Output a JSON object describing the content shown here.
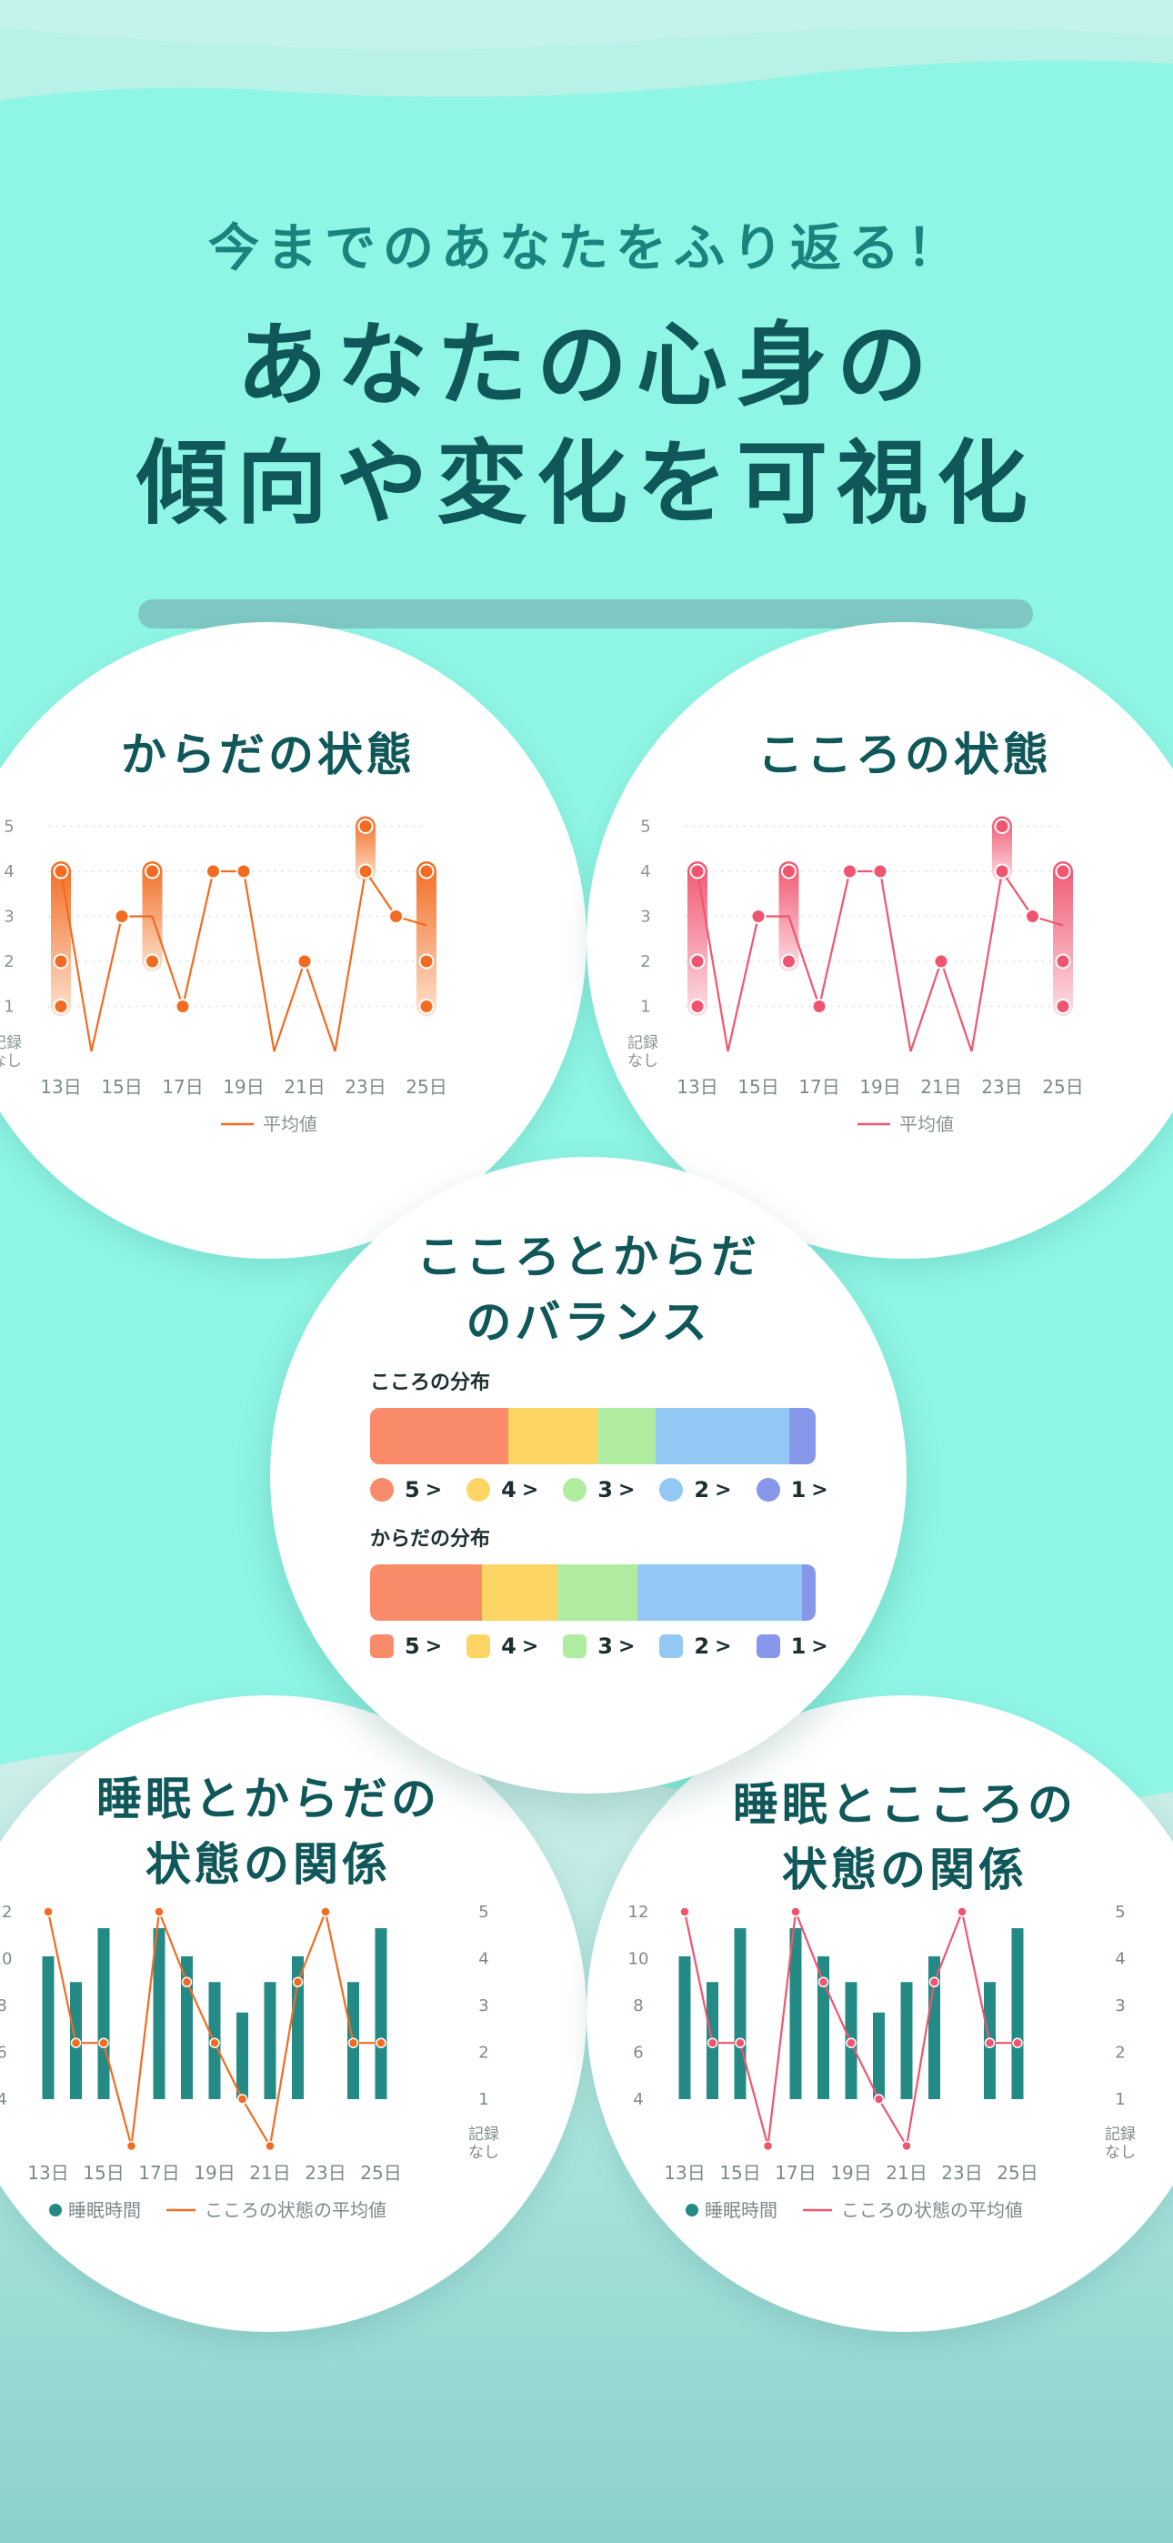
{
  "hero": {
    "subtitle": "今までのあなたをふり返る！",
    "title_line1": "あなたの心身の",
    "title_line2": "傾向や変化を可視化"
  },
  "colors": {
    "background": "#8ff5e4",
    "heading": "#0f5759",
    "body_orange": "#f26b21",
    "mind_red": "#f0556f",
    "teal_bar": "#248a85"
  },
  "axis": {
    "x_labels": [
      "13日",
      "15日",
      "17日",
      "19日",
      "21日",
      "23日",
      "25日"
    ],
    "y_levels": [
      "5",
      "4",
      "3",
      "2",
      "1"
    ],
    "no_record_line1": "記録",
    "no_record_line2": "なし",
    "sleep_left_ticks": [
      "12",
      "10",
      "8",
      "6",
      "4"
    ]
  },
  "body_card": {
    "title": "からだの状態",
    "legend": "平均値"
  },
  "mind_card": {
    "title": "こころの状態",
    "legend": "平均値"
  },
  "balance_card": {
    "title_line1": "こころとからだ",
    "title_line2": "のバランス",
    "mind_label": "こころの分布",
    "body_label": "からだの分布",
    "chevron": ">",
    "legend_labels": [
      "5",
      "4",
      "3",
      "2",
      "1"
    ],
    "legend_colors": [
      "#f98a6a",
      "#fdd564",
      "#b0ec9f",
      "#93c8f5",
      "#8797ea"
    ]
  },
  "sleep_body_card": {
    "title_line1": "睡眠とからだの",
    "title_line2": "状態の関係",
    "legend_bar": "睡眠時間",
    "legend_line": "こころの状態の平均値"
  },
  "sleep_mind_card": {
    "title_line1": "睡眠とこころの",
    "title_line2": "状態の関係",
    "legend_bar": "睡眠時間",
    "legend_line": "こころの状態の平均値"
  },
  "chart_data": [
    {
      "type": "line",
      "title": "からだの状態",
      "x": [
        13,
        14,
        15,
        16,
        17,
        18,
        19,
        20,
        21,
        22,
        23,
        24,
        25
      ],
      "ylim": [
        0,
        5
      ],
      "series": [
        {
          "name": "平均値",
          "values": [
            4,
            0,
            3,
            3,
            1,
            4,
            4,
            0,
            2,
            0,
            4,
            3,
            2.8
          ]
        }
      ],
      "ranges": [
        {
          "x": 13,
          "min": 1,
          "max": 4,
          "points": [
            1,
            2,
            4
          ]
        },
        {
          "x": 16,
          "min": 2,
          "max": 4,
          "points": [
            2,
            4
          ]
        },
        {
          "x": 23,
          "min": 4,
          "max": 5,
          "points": [
            4,
            5
          ]
        },
        {
          "x": 25,
          "min": 1,
          "max": 4,
          "points": [
            1,
            2,
            4
          ]
        }
      ],
      "singles": [
        {
          "x": 15,
          "y": 3
        },
        {
          "x": 17,
          "y": 1
        },
        {
          "x": 18,
          "y": 4
        },
        {
          "x": 19,
          "y": 4
        },
        {
          "x": 21,
          "y": 2
        },
        {
          "x": 24,
          "y": 3
        }
      ]
    },
    {
      "type": "line",
      "title": "こころの状態",
      "x": [
        13,
        14,
        15,
        16,
        17,
        18,
        19,
        20,
        21,
        22,
        23,
        24,
        25
      ],
      "ylim": [
        0,
        5
      ],
      "series": [
        {
          "name": "平均値",
          "values": [
            4,
            0,
            3,
            3,
            1,
            4,
            4,
            0,
            2,
            0,
            4,
            3,
            2.8
          ]
        }
      ],
      "ranges": [
        {
          "x": 13,
          "min": 1,
          "max": 4,
          "points": [
            1,
            2,
            4
          ]
        },
        {
          "x": 16,
          "min": 2,
          "max": 4,
          "points": [
            2,
            4
          ]
        },
        {
          "x": 23,
          "min": 4,
          "max": 5,
          "points": [
            4,
            5
          ]
        },
        {
          "x": 25,
          "min": 1,
          "max": 4,
          "points": [
            1,
            2,
            4
          ]
        }
      ],
      "singles": [
        {
          "x": 15,
          "y": 3
        },
        {
          "x": 17,
          "y": 1
        },
        {
          "x": 18,
          "y": 4
        },
        {
          "x": 19,
          "y": 4
        },
        {
          "x": 21,
          "y": 2
        },
        {
          "x": 24,
          "y": 3
        }
      ]
    },
    {
      "type": "bar",
      "title": "こころの分布",
      "categories": [
        "5",
        "4",
        "3",
        "2",
        "1"
      ],
      "values": [
        31,
        20,
        13,
        30,
        6
      ]
    },
    {
      "type": "bar",
      "title": "からだの分布",
      "categories": [
        "5",
        "4",
        "3",
        "2",
        "1"
      ],
      "values": [
        25,
        17,
        18,
        37,
        3
      ]
    },
    {
      "type": "bar",
      "title": "睡眠とからだの状態の関係",
      "x": [
        13,
        14,
        15,
        16,
        17,
        18,
        19,
        20,
        21,
        22,
        23,
        24,
        25
      ],
      "ylim": [
        4,
        12
      ],
      "y2lim": [
        0,
        5
      ],
      "series": [
        {
          "name": "睡眠時間",
          "values": [
            10.1,
            9,
            11.3,
            null,
            11.3,
            10.1,
            9,
            7.7,
            9,
            10.1,
            null,
            9,
            11.3
          ]
        },
        {
          "name": "こころの状態の平均値",
          "values": [
            5,
            2.2,
            2.2,
            0,
            5,
            3.5,
            2.2,
            1,
            0,
            3.5,
            5,
            2.2,
            2.2
          ]
        }
      ]
    },
    {
      "type": "bar",
      "title": "睡眠とこころの状態の関係",
      "x": [
        13,
        14,
        15,
        16,
        17,
        18,
        19,
        20,
        21,
        22,
        23,
        24,
        25
      ],
      "ylim": [
        4,
        12
      ],
      "y2lim": [
        0,
        5
      ],
      "series": [
        {
          "name": "睡眠時間",
          "values": [
            10.1,
            9,
            11.3,
            null,
            11.3,
            10.1,
            9,
            7.7,
            9,
            10.1,
            null,
            9,
            11.3
          ]
        },
        {
          "name": "こころの状態の平均値",
          "values": [
            5,
            2.2,
            2.2,
            0,
            5,
            3.5,
            2.2,
            1,
            0,
            3.5,
            5,
            2.2,
            2.2
          ]
        }
      ]
    }
  ]
}
